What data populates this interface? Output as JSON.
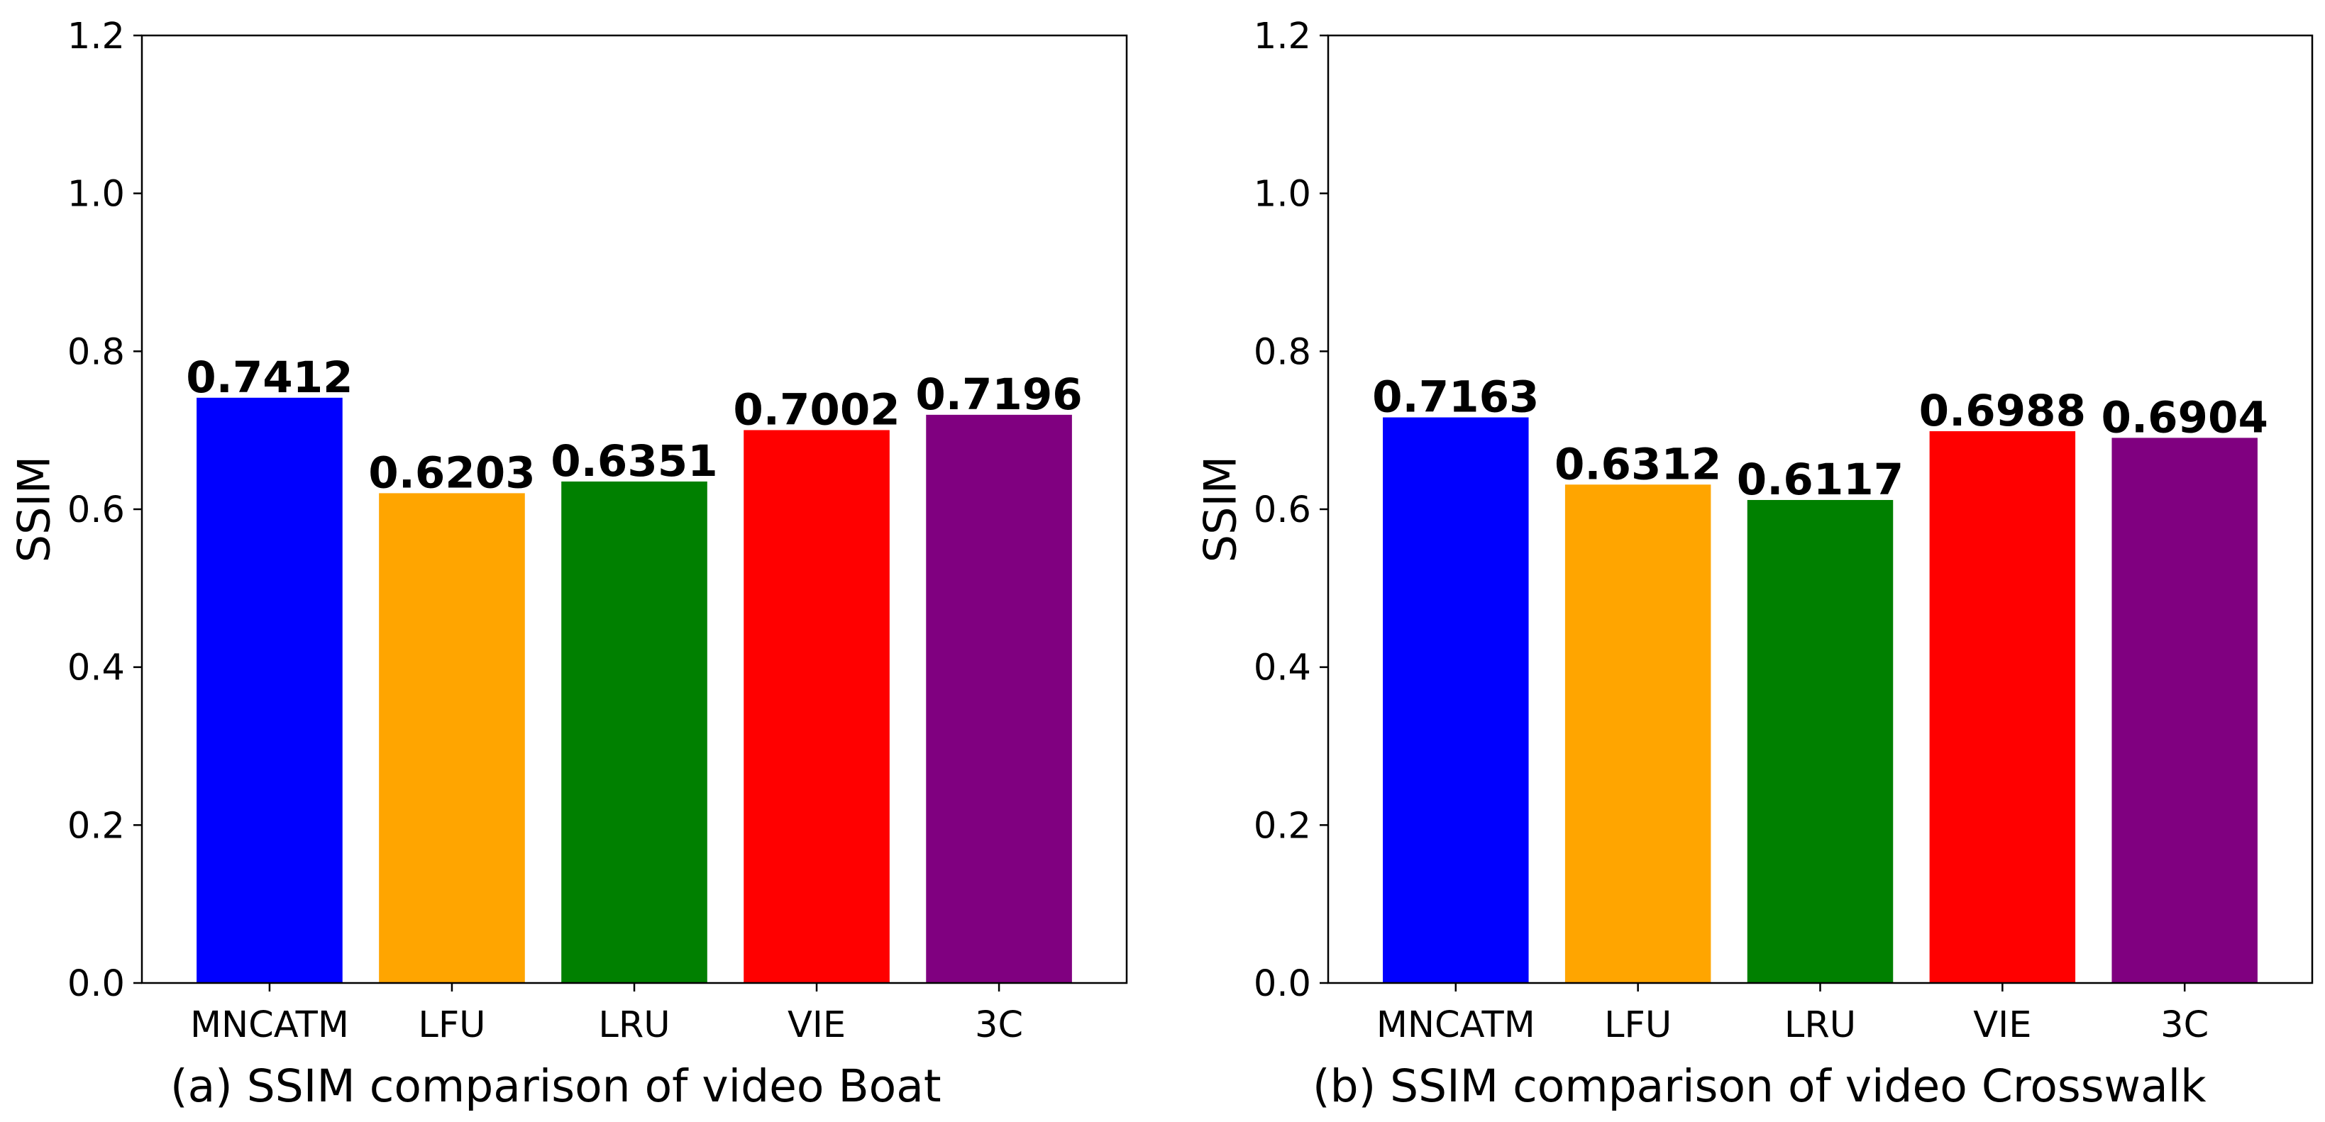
{
  "chart_data": [
    {
      "type": "bar",
      "title": "(a) SSIM comparison of video Boat",
      "xlabel": "",
      "ylabel": "SSIM",
      "ylim": [
        0,
        1.2
      ],
      "yticks": [
        "0.0",
        "0.2",
        "0.4",
        "0.6",
        "0.8",
        "1.0",
        "1.2"
      ],
      "categories": [
        "MNCATM",
        "LFU",
        "LRU",
        "VIE",
        "3C"
      ],
      "values": [
        0.7412,
        0.6203,
        0.6351,
        0.7002,
        0.7196
      ],
      "value_labels": [
        "0.7412",
        "0.6203",
        "0.6351",
        "0.7002",
        "0.7196"
      ],
      "colors": [
        "#0000ff",
        "#ffa500",
        "#008000",
        "#ff0000",
        "#800080"
      ],
      "grid": false,
      "legend": "none"
    },
    {
      "type": "bar",
      "title": "(b) SSIM comparison of video Crosswalk",
      "xlabel": "",
      "ylabel": "SSIM",
      "ylim": [
        0,
        1.2
      ],
      "yticks": [
        "0.0",
        "0.2",
        "0.4",
        "0.6",
        "0.8",
        "1.0",
        "1.2"
      ],
      "categories": [
        "MNCATM",
        "LFU",
        "LRU",
        "VIE",
        "3C"
      ],
      "values": [
        0.7163,
        0.6312,
        0.6117,
        0.6988,
        0.6904
      ],
      "value_labels": [
        "0.7163",
        "0.6312",
        "0.6117",
        "0.6988",
        "0.6904"
      ],
      "colors": [
        "#0000ff",
        "#ffa500",
        "#008000",
        "#ff0000",
        "#800080"
      ],
      "grid": false,
      "legend": "none"
    }
  ]
}
